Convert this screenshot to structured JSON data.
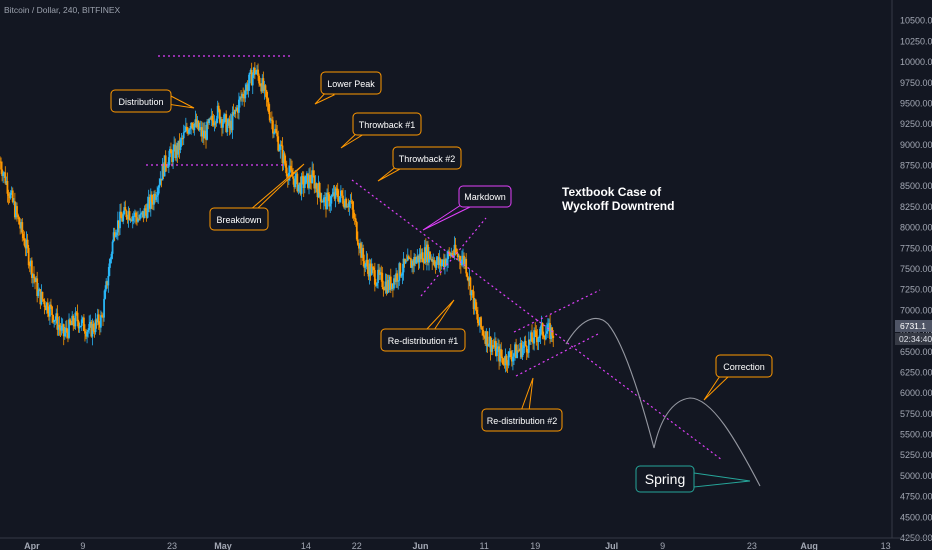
{
  "chart_data": {
    "type": "candlestick",
    "symbol_line": "Bitcoin / Dollar, 240, BITFINEX",
    "title_lines": [
      "Textbook Case of",
      "Wyckoff Downtrend"
    ],
    "y_range": [
      4250,
      10750
    ],
    "y_ticks": [
      4250,
      4500,
      4750,
      5000,
      5250,
      5500,
      5750,
      6000,
      6250,
      6500,
      6750,
      7000,
      7250,
      7500,
      7750,
      8000,
      8250,
      8500,
      8750,
      9000,
      9250,
      9500,
      9750,
      10000,
      10250,
      10500
    ],
    "x_range": [
      "2018-03-27",
      "2018-08-14"
    ],
    "x_ticks": [
      {
        "label": "Apr",
        "date": "2018-04-01",
        "bold": true
      },
      {
        "label": "9",
        "date": "2018-04-09"
      },
      {
        "label": "23",
        "date": "2018-04-23"
      },
      {
        "label": "May",
        "date": "2018-05-01",
        "bold": true
      },
      {
        "label": "14",
        "date": "2018-05-14"
      },
      {
        "label": "22",
        "date": "2018-05-22"
      },
      {
        "label": "Jun",
        "date": "2018-06-01",
        "bold": true
      },
      {
        "label": "11",
        "date": "2018-06-11"
      },
      {
        "label": "19",
        "date": "2018-06-19"
      },
      {
        "label": "Jul",
        "date": "2018-07-01",
        "bold": true
      },
      {
        "label": "9",
        "date": "2018-07-09"
      },
      {
        "label": "23",
        "date": "2018-07-23"
      },
      {
        "label": "Aug",
        "date": "2018-08-01",
        "bold": true
      },
      {
        "label": "13",
        "date": "2018-08-13"
      }
    ],
    "price_path": [
      [
        "2018-03-27",
        8800
      ],
      [
        "2018-03-29",
        8300
      ],
      [
        "2018-03-31",
        7800
      ],
      [
        "2018-04-02",
        7200
      ],
      [
        "2018-04-04",
        7000
      ],
      [
        "2018-04-06",
        6700
      ],
      [
        "2018-04-08",
        6900
      ],
      [
        "2018-04-10",
        6750
      ],
      [
        "2018-04-12",
        6900
      ],
      [
        "2018-04-14",
        8000
      ],
      [
        "2018-04-16",
        8200
      ],
      [
        "2018-04-18",
        8100
      ],
      [
        "2018-04-20",
        8350
      ],
      [
        "2018-04-22",
        8800
      ],
      [
        "2018-04-24",
        8950
      ],
      [
        "2018-04-26",
        9300
      ],
      [
        "2018-04-28",
        9100
      ],
      [
        "2018-04-30",
        9400
      ],
      [
        "2018-05-02",
        9200
      ],
      [
        "2018-05-04",
        9600
      ],
      [
        "2018-05-06",
        9900
      ],
      [
        "2018-05-07",
        9750
      ],
      [
        "2018-05-09",
        9200
      ],
      [
        "2018-05-11",
        8700
      ],
      [
        "2018-05-13",
        8500
      ],
      [
        "2018-05-15",
        8600
      ],
      [
        "2018-05-17",
        8300
      ],
      [
        "2018-05-19",
        8400
      ],
      [
        "2018-05-21",
        8300
      ],
      [
        "2018-05-23",
        7600
      ],
      [
        "2018-05-25",
        7400
      ],
      [
        "2018-05-27",
        7300
      ],
      [
        "2018-05-29",
        7500
      ],
      [
        "2018-05-31",
        7600
      ],
      [
        "2018-06-02",
        7700
      ],
      [
        "2018-06-04",
        7550
      ],
      [
        "2018-06-06",
        7700
      ],
      [
        "2018-06-08",
        7600
      ],
      [
        "2018-06-10",
        6850
      ],
      [
        "2018-06-12",
        6600
      ],
      [
        "2018-06-14",
        6400
      ],
      [
        "2018-06-16",
        6500
      ],
      [
        "2018-06-18",
        6600
      ],
      [
        "2018-06-20",
        6750
      ],
      [
        "2018-06-22",
        6731
      ]
    ],
    "annotations": [
      {
        "text": "Distribution",
        "shape": "callout"
      },
      {
        "text": "Lower Peak",
        "shape": "callout"
      },
      {
        "text": "Throwback #1",
        "shape": "callout"
      },
      {
        "text": "Throwback #2",
        "shape": "callout"
      },
      {
        "text": "Breakdown",
        "shape": "callout"
      },
      {
        "text": "Markdown",
        "shape": "callout",
        "color": "#e040fb"
      },
      {
        "text": "Re-distribution #1",
        "shape": "callout"
      },
      {
        "text": "Re-distribution #2",
        "shape": "callout"
      },
      {
        "text": "Correction",
        "shape": "callout"
      },
      {
        "text": "Spring",
        "shape": "callout",
        "color": "#26a69a"
      }
    ],
    "price_tag": "6731.1",
    "time_tag": "02:34:40",
    "colors": {
      "background": "#131722",
      "bull": "#29b6f6",
      "bear": "#ff9800",
      "trendline": "#e040fb",
      "callout": "#ff9800",
      "spring": "#26a69a",
      "projection": "#9598a1",
      "price_tag": "#4f5566"
    },
    "grid": false
  }
}
